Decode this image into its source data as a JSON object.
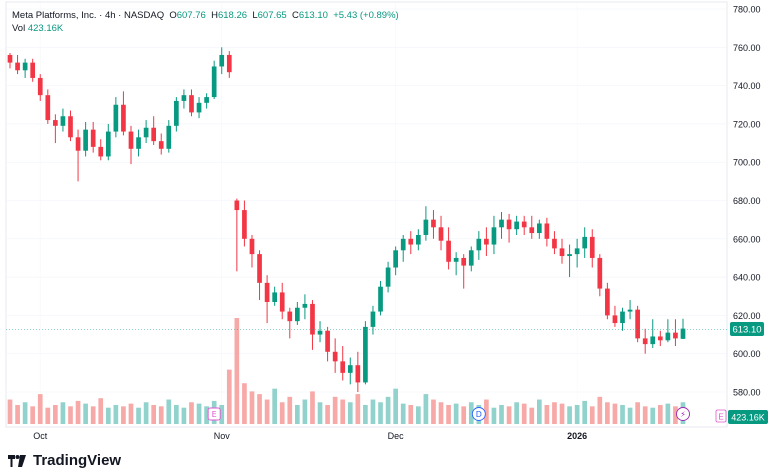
{
  "chart_data": {
    "type": "candlestick",
    "title": "Meta Platforms, Inc.",
    "interval": "4h",
    "exchange": "NASDAQ",
    "ohlc": {
      "open_label": "O",
      "open": "607.76",
      "high_label": "H",
      "high": "618.26",
      "low_label": "L",
      "low": "607.65",
      "close_label": "C",
      "close": "613.10",
      "change": "+5.43 (+0.89%)"
    },
    "volume_label": "Vol",
    "volume_value": "423.16K",
    "last_price": "613.10",
    "y_ticks": [
      "780.00",
      "760.00",
      "740.00",
      "720.00",
      "700.00",
      "680.00",
      "660.00",
      "640.00",
      "620.00",
      "600.00",
      "580.00"
    ],
    "ylim": [
      572,
      782
    ],
    "x_labels": [
      {
        "label": "Oct",
        "index": 4
      },
      {
        "label": "Nov",
        "index": 28
      },
      {
        "label": "Dec",
        "index": 51
      },
      {
        "label": "2026",
        "index": 75
      }
    ],
    "event_markers": [
      {
        "label": "E",
        "index": 27
      },
      {
        "label": "D",
        "index": 62
      },
      {
        "label": "⚡",
        "index": 89
      }
    ],
    "candles": [
      [
        756,
        757,
        749,
        752
      ],
      [
        752,
        756,
        746,
        748
      ],
      [
        748,
        754,
        744,
        752
      ],
      [
        752,
        754,
        742,
        744
      ],
      [
        744,
        746,
        732,
        735
      ],
      [
        735,
        738,
        720,
        722
      ],
      [
        722,
        725,
        710,
        719
      ],
      [
        719,
        728,
        716,
        724
      ],
      [
        724,
        727,
        711,
        713
      ],
      [
        713,
        717,
        690,
        706
      ],
      [
        706,
        721,
        703,
        717
      ],
      [
        717,
        721,
        705,
        708
      ],
      [
        708,
        712,
        701,
        703
      ],
      [
        703,
        720,
        701,
        716
      ],
      [
        716,
        734,
        713,
        730
      ],
      [
        730,
        737,
        714,
        716
      ],
      [
        716,
        719,
        699,
        707
      ],
      [
        707,
        717,
        703,
        713
      ],
      [
        713,
        722,
        710,
        718
      ],
      [
        718,
        724,
        709,
        711
      ],
      [
        711,
        715,
        704,
        707
      ],
      [
        707,
        722,
        705,
        719
      ],
      [
        719,
        734,
        716,
        732
      ],
      [
        732,
        738,
        728,
        735
      ],
      [
        735,
        738,
        724,
        726
      ],
      [
        726,
        734,
        723,
        731
      ],
      [
        731,
        736,
        728,
        734
      ],
      [
        734,
        753,
        733,
        750
      ],
      [
        750,
        760,
        746,
        756
      ],
      [
        756,
        758,
        744,
        747
      ],
      [
        680,
        681,
        643,
        675
      ],
      [
        675,
        680,
        656,
        660
      ],
      [
        660,
        662,
        645,
        652
      ],
      [
        652,
        654,
        628,
        637
      ],
      [
        637,
        641,
        616,
        627
      ],
      [
        627,
        635,
        625,
        632
      ],
      [
        632,
        637,
        618,
        622
      ],
      [
        622,
        624,
        608,
        617
      ],
      [
        617,
        627,
        615,
        624
      ],
      [
        624,
        631,
        618,
        626
      ],
      [
        626,
        628,
        602,
        610
      ],
      [
        610,
        617,
        606,
        612
      ],
      [
        612,
        614,
        596,
        601
      ],
      [
        601,
        608,
        590,
        596
      ],
      [
        596,
        604,
        586,
        590
      ],
      [
        590,
        598,
        584,
        594
      ],
      [
        594,
        601,
        580,
        585
      ],
      [
        585,
        617,
        584,
        614
      ],
      [
        614,
        625,
        610,
        622
      ],
      [
        622,
        638,
        620,
        635
      ],
      [
        635,
        648,
        632,
        645
      ],
      [
        645,
        656,
        641,
        654
      ],
      [
        654,
        662,
        648,
        660
      ],
      [
        660,
        664,
        652,
        657
      ],
      [
        657,
        665,
        654,
        662
      ],
      [
        662,
        677,
        659,
        670
      ],
      [
        670,
        675,
        660,
        666
      ],
      [
        666,
        672,
        654,
        659
      ],
      [
        659,
        666,
        644,
        648
      ],
      [
        648,
        653,
        641,
        650
      ],
      [
        650,
        652,
        634,
        646
      ],
      [
        646,
        656,
        643,
        654
      ],
      [
        654,
        664,
        649,
        660
      ],
      [
        660,
        666,
        651,
        657
      ],
      [
        657,
        672,
        652,
        666
      ],
      [
        666,
        674,
        660,
        670
      ],
      [
        670,
        673,
        658,
        665
      ],
      [
        665,
        672,
        662,
        669
      ],
      [
        669,
        672,
        662,
        666
      ],
      [
        666,
        672,
        660,
        663
      ],
      [
        663,
        670,
        660,
        668
      ],
      [
        668,
        671,
        656,
        660
      ],
      [
        660,
        664,
        652,
        655
      ],
      [
        655,
        660,
        647,
        651
      ],
      [
        651,
        657,
        640,
        652
      ],
      [
        652,
        660,
        645,
        655
      ],
      [
        655,
        666,
        650,
        661
      ],
      [
        661,
        665,
        645,
        650
      ],
      [
        650,
        652,
        630,
        634
      ],
      [
        634,
        637,
        618,
        620
      ],
      [
        620,
        625,
        614,
        616
      ],
      [
        616,
        624,
        612,
        622
      ],
      [
        622,
        628,
        618,
        623
      ],
      [
        623,
        625,
        606,
        608
      ],
      [
        608,
        613,
        600,
        605
      ],
      [
        605,
        618,
        603,
        609
      ],
      [
        609,
        612,
        604,
        607
      ],
      [
        607,
        618,
        606,
        611
      ],
      [
        611,
        618,
        604,
        608
      ],
      [
        607.76,
        618.26,
        607.65,
        613.1
      ]
    ],
    "volumes": [
      18,
      14,
      16,
      13,
      22,
      12,
      14,
      16,
      13,
      17,
      15,
      13,
      19,
      12,
      14,
      13,
      15,
      12,
      16,
      14,
      13,
      18,
      14,
      12,
      16,
      15,
      13,
      17,
      14,
      40,
      78,
      30,
      24,
      22,
      18,
      26,
      16,
      20,
      14,
      18,
      24,
      16,
      14,
      20,
      18,
      16,
      22,
      14,
      18,
      16,
      20,
      26,
      15,
      14,
      13,
      22,
      18,
      16,
      14,
      15,
      13,
      16,
      14,
      18,
      12,
      14,
      13,
      16,
      15,
      12,
      18,
      14,
      16,
      15,
      13,
      14,
      17,
      13,
      20,
      16,
      15,
      14,
      12,
      16,
      13,
      12,
      14,
      15,
      13,
      16
    ]
  },
  "branding": {
    "logo_text": "TradingView"
  }
}
